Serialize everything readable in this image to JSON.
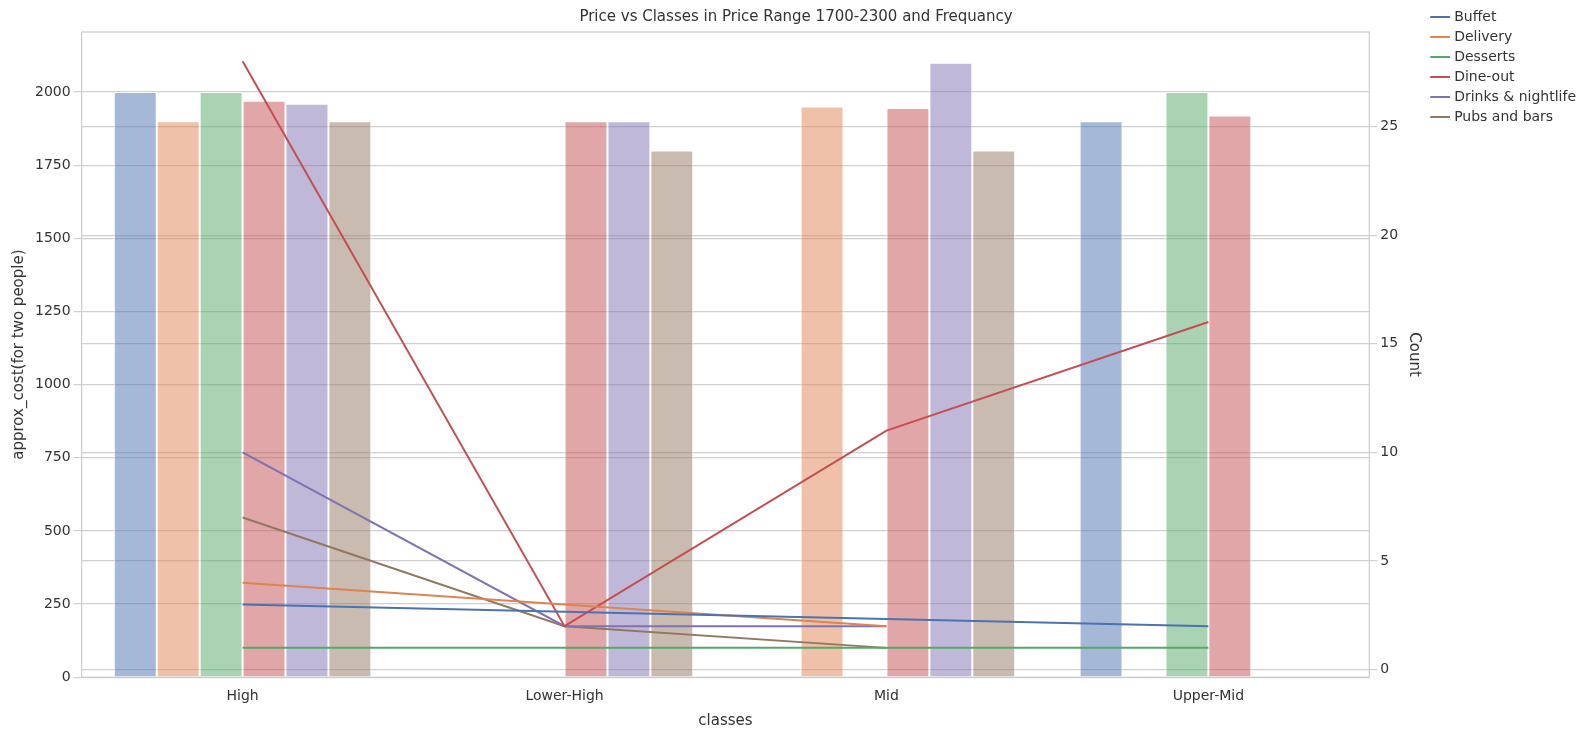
{
  "chart_data": {
    "type": "bar",
    "title": "Price vs Classes in Price Range 1700-2300 and Frequancy",
    "x_label": "classes",
    "y_label": "approx_cost(for two people)",
    "y2_label": "Count",
    "categories": [
      "High",
      "Lower-High",
      "Mid",
      "Upper-Mid"
    ],
    "series": [
      {
        "name": "Buffet",
        "type": "bar",
        "color": "#4c72b0",
        "values": [
          2000,
          null,
          null,
          1900
        ]
      },
      {
        "name": "Delivery",
        "type": "bar",
        "color": "#dd8452",
        "values": [
          1900,
          null,
          1950,
          null
        ]
      },
      {
        "name": "Desserts",
        "type": "bar",
        "color": "#55a868",
        "values": [
          2000,
          null,
          null,
          2000
        ]
      },
      {
        "name": "Dine-out",
        "type": "bar",
        "color": "#c44e52",
        "values": [
          1970,
          1900,
          1945,
          1920
        ]
      },
      {
        "name": "Drinks & nightlife",
        "type": "bar",
        "color": "#8172b3",
        "values": [
          1960,
          1900,
          2100,
          null
        ]
      },
      {
        "name": "Pubs and bars",
        "type": "bar",
        "color": "#937860",
        "values": [
          1900,
          1800,
          1800,
          null
        ]
      },
      {
        "name": "Buffet",
        "type": "line",
        "axis": "y2",
        "color": "#4c72b0",
        "values": [
          3,
          null,
          null,
          2
        ]
      },
      {
        "name": "Delivery",
        "type": "line",
        "axis": "y2",
        "color": "#dd8452",
        "values": [
          4,
          null,
          2,
          null
        ]
      },
      {
        "name": "Desserts",
        "type": "line",
        "axis": "y2",
        "color": "#55a868",
        "values": [
          1,
          null,
          null,
          1
        ]
      },
      {
        "name": "Dine-out",
        "type": "line",
        "axis": "y2",
        "color": "#c44e52",
        "values": [
          28,
          2,
          11,
          16
        ]
      },
      {
        "name": "Drinks & nightlife",
        "type": "line",
        "axis": "y2",
        "color": "#8172b3",
        "values": [
          10,
          2,
          2,
          null
        ]
      },
      {
        "name": "Pubs and bars",
        "type": "line",
        "axis": "y2",
        "color": "#937860",
        "values": [
          7,
          2,
          1,
          null
        ]
      }
    ],
    "ylim": [
      0,
      2205
    ],
    "yticks": [
      0,
      250,
      500,
      750,
      1000,
      1250,
      1500,
      1750,
      2000
    ],
    "y2lim": [
      -0.35,
      29.35
    ],
    "y2ticks": [
      0,
      5,
      10,
      15,
      20,
      25
    ],
    "grid": true,
    "legend": "right"
  }
}
